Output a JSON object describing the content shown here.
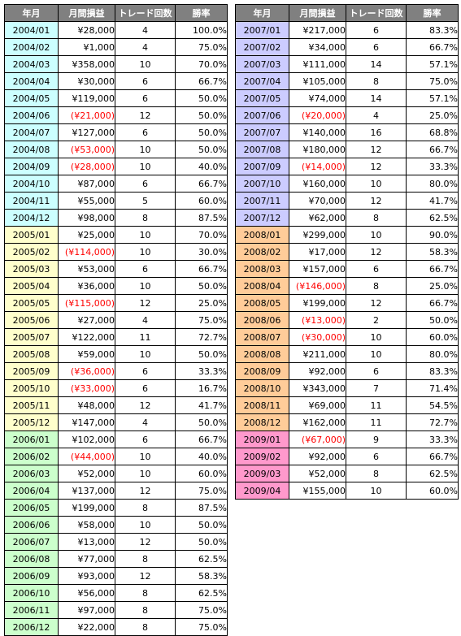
{
  "headers": {
    "month": "年月",
    "pl": "月間損益",
    "trades": "トレード回数",
    "winrate": "勝率"
  },
  "year_colors": {
    "2004": "#ccffff",
    "2005": "#ffffcc",
    "2006": "#ccffcc",
    "2007": "#ccccff",
    "2008": "#ffcc99",
    "2009": "#ff99cc"
  },
  "left": [
    {
      "month": "2004/01",
      "pl": "¥28,000",
      "neg": false,
      "trades": "4",
      "rate": "100.0%"
    },
    {
      "month": "2004/02",
      "pl": "¥1,000",
      "neg": false,
      "trades": "4",
      "rate": "75.0%"
    },
    {
      "month": "2004/03",
      "pl": "¥358,000",
      "neg": false,
      "trades": "10",
      "rate": "70.0%"
    },
    {
      "month": "2004/04",
      "pl": "¥30,000",
      "neg": false,
      "trades": "6",
      "rate": "66.7%"
    },
    {
      "month": "2004/05",
      "pl": "¥119,000",
      "neg": false,
      "trades": "6",
      "rate": "50.0%"
    },
    {
      "month": "2004/06",
      "pl": "(¥21,000)",
      "neg": true,
      "trades": "12",
      "rate": "50.0%"
    },
    {
      "month": "2004/07",
      "pl": "¥127,000",
      "neg": false,
      "trades": "6",
      "rate": "50.0%"
    },
    {
      "month": "2004/08",
      "pl": "(¥53,000)",
      "neg": true,
      "trades": "10",
      "rate": "50.0%"
    },
    {
      "month": "2004/09",
      "pl": "(¥28,000)",
      "neg": true,
      "trades": "10",
      "rate": "40.0%"
    },
    {
      "month": "2004/10",
      "pl": "¥87,000",
      "neg": false,
      "trades": "6",
      "rate": "66.7%"
    },
    {
      "month": "2004/11",
      "pl": "¥55,000",
      "neg": false,
      "trades": "5",
      "rate": "60.0%"
    },
    {
      "month": "2004/12",
      "pl": "¥98,000",
      "neg": false,
      "trades": "8",
      "rate": "87.5%"
    },
    {
      "month": "2005/01",
      "pl": "¥25,000",
      "neg": false,
      "trades": "10",
      "rate": "70.0%"
    },
    {
      "month": "2005/02",
      "pl": "(¥114,000)",
      "neg": true,
      "trades": "10",
      "rate": "30.0%"
    },
    {
      "month": "2005/03",
      "pl": "¥53,000",
      "neg": false,
      "trades": "6",
      "rate": "66.7%"
    },
    {
      "month": "2005/04",
      "pl": "¥36,000",
      "neg": false,
      "trades": "10",
      "rate": "50.0%"
    },
    {
      "month": "2005/05",
      "pl": "(¥115,000)",
      "neg": true,
      "trades": "12",
      "rate": "25.0%"
    },
    {
      "month": "2005/06",
      "pl": "¥27,000",
      "neg": false,
      "trades": "4",
      "rate": "75.0%"
    },
    {
      "month": "2005/07",
      "pl": "¥122,000",
      "neg": false,
      "trades": "11",
      "rate": "72.7%"
    },
    {
      "month": "2005/08",
      "pl": "¥59,000",
      "neg": false,
      "trades": "10",
      "rate": "50.0%"
    },
    {
      "month": "2005/09",
      "pl": "(¥36,000)",
      "neg": true,
      "trades": "6",
      "rate": "33.3%"
    },
    {
      "month": "2005/10",
      "pl": "(¥33,000)",
      "neg": true,
      "trades": "6",
      "rate": "16.7%"
    },
    {
      "month": "2005/11",
      "pl": "¥48,000",
      "neg": false,
      "trades": "12",
      "rate": "41.7%"
    },
    {
      "month": "2005/12",
      "pl": "¥147,000",
      "neg": false,
      "trades": "4",
      "rate": "50.0%"
    },
    {
      "month": "2006/01",
      "pl": "¥102,000",
      "neg": false,
      "trades": "6",
      "rate": "66.7%"
    },
    {
      "month": "2006/02",
      "pl": "(¥44,000)",
      "neg": true,
      "trades": "10",
      "rate": "40.0%"
    },
    {
      "month": "2006/03",
      "pl": "¥52,000",
      "neg": false,
      "trades": "10",
      "rate": "60.0%"
    },
    {
      "month": "2006/04",
      "pl": "¥137,000",
      "neg": false,
      "trades": "12",
      "rate": "75.0%"
    },
    {
      "month": "2006/05",
      "pl": "¥199,000",
      "neg": false,
      "trades": "8",
      "rate": "87.5%"
    },
    {
      "month": "2006/06",
      "pl": "¥58,000",
      "neg": false,
      "trades": "10",
      "rate": "50.0%"
    },
    {
      "month": "2006/07",
      "pl": "¥13,000",
      "neg": false,
      "trades": "12",
      "rate": "50.0%"
    },
    {
      "month": "2006/08",
      "pl": "¥77,000",
      "neg": false,
      "trades": "8",
      "rate": "62.5%"
    },
    {
      "month": "2006/09",
      "pl": "¥93,000",
      "neg": false,
      "trades": "12",
      "rate": "58.3%"
    },
    {
      "month": "2006/10",
      "pl": "¥56,000",
      "neg": false,
      "trades": "8",
      "rate": "62.5%"
    },
    {
      "month": "2006/11",
      "pl": "¥97,000",
      "neg": false,
      "trades": "8",
      "rate": "75.0%"
    },
    {
      "month": "2006/12",
      "pl": "¥22,000",
      "neg": false,
      "trades": "8",
      "rate": "75.0%"
    }
  ],
  "right": [
    {
      "month": "2007/01",
      "pl": "¥217,000",
      "neg": false,
      "trades": "6",
      "rate": "83.3%"
    },
    {
      "month": "2007/02",
      "pl": "¥34,000",
      "neg": false,
      "trades": "6",
      "rate": "66.7%"
    },
    {
      "month": "2007/03",
      "pl": "¥111,000",
      "neg": false,
      "trades": "14",
      "rate": "57.1%"
    },
    {
      "month": "2007/04",
      "pl": "¥105,000",
      "neg": false,
      "trades": "8",
      "rate": "75.0%"
    },
    {
      "month": "2007/05",
      "pl": "¥74,000",
      "neg": false,
      "trades": "14",
      "rate": "57.1%"
    },
    {
      "month": "2007/06",
      "pl": "(¥20,000)",
      "neg": true,
      "trades": "4",
      "rate": "25.0%"
    },
    {
      "month": "2007/07",
      "pl": "¥140,000",
      "neg": false,
      "trades": "16",
      "rate": "68.8%"
    },
    {
      "month": "2007/08",
      "pl": "¥180,000",
      "neg": false,
      "trades": "12",
      "rate": "66.7%"
    },
    {
      "month": "2007/09",
      "pl": "(¥14,000)",
      "neg": true,
      "trades": "12",
      "rate": "33.3%"
    },
    {
      "month": "2007/10",
      "pl": "¥160,000",
      "neg": false,
      "trades": "10",
      "rate": "80.0%"
    },
    {
      "month": "2007/11",
      "pl": "¥70,000",
      "neg": false,
      "trades": "12",
      "rate": "41.7%"
    },
    {
      "month": "2007/12",
      "pl": "¥62,000",
      "neg": false,
      "trades": "8",
      "rate": "62.5%"
    },
    {
      "month": "2008/01",
      "pl": "¥299,000",
      "neg": false,
      "trades": "10",
      "rate": "90.0%"
    },
    {
      "month": "2008/02",
      "pl": "¥17,000",
      "neg": false,
      "trades": "12",
      "rate": "58.3%"
    },
    {
      "month": "2008/03",
      "pl": "¥157,000",
      "neg": false,
      "trades": "6",
      "rate": "66.7%"
    },
    {
      "month": "2008/04",
      "pl": "(¥146,000)",
      "neg": true,
      "trades": "8",
      "rate": "25.0%"
    },
    {
      "month": "2008/05",
      "pl": "¥199,000",
      "neg": false,
      "trades": "12",
      "rate": "66.7%"
    },
    {
      "month": "2008/06",
      "pl": "(¥13,000)",
      "neg": true,
      "trades": "2",
      "rate": "50.0%"
    },
    {
      "month": "2008/07",
      "pl": "(¥30,000)",
      "neg": true,
      "trades": "10",
      "rate": "60.0%"
    },
    {
      "month": "2008/08",
      "pl": "¥211,000",
      "neg": false,
      "trades": "10",
      "rate": "80.0%"
    },
    {
      "month": "2008/09",
      "pl": "¥92,000",
      "neg": false,
      "trades": "6",
      "rate": "83.3%"
    },
    {
      "month": "2008/10",
      "pl": "¥343,000",
      "neg": false,
      "trades": "7",
      "rate": "71.4%"
    },
    {
      "month": "2008/11",
      "pl": "¥69,000",
      "neg": false,
      "trades": "11",
      "rate": "54.5%"
    },
    {
      "month": "2008/12",
      "pl": "¥162,000",
      "neg": false,
      "trades": "11",
      "rate": "72.7%"
    },
    {
      "month": "2009/01",
      "pl": "(¥67,000)",
      "neg": true,
      "trades": "9",
      "rate": "33.3%"
    },
    {
      "month": "2009/02",
      "pl": "¥92,000",
      "neg": false,
      "trades": "6",
      "rate": "66.7%"
    },
    {
      "month": "2009/03",
      "pl": "¥52,000",
      "neg": false,
      "trades": "8",
      "rate": "62.5%"
    },
    {
      "month": "2009/04",
      "pl": "¥155,000",
      "neg": false,
      "trades": "10",
      "rate": "60.0%"
    }
  ]
}
